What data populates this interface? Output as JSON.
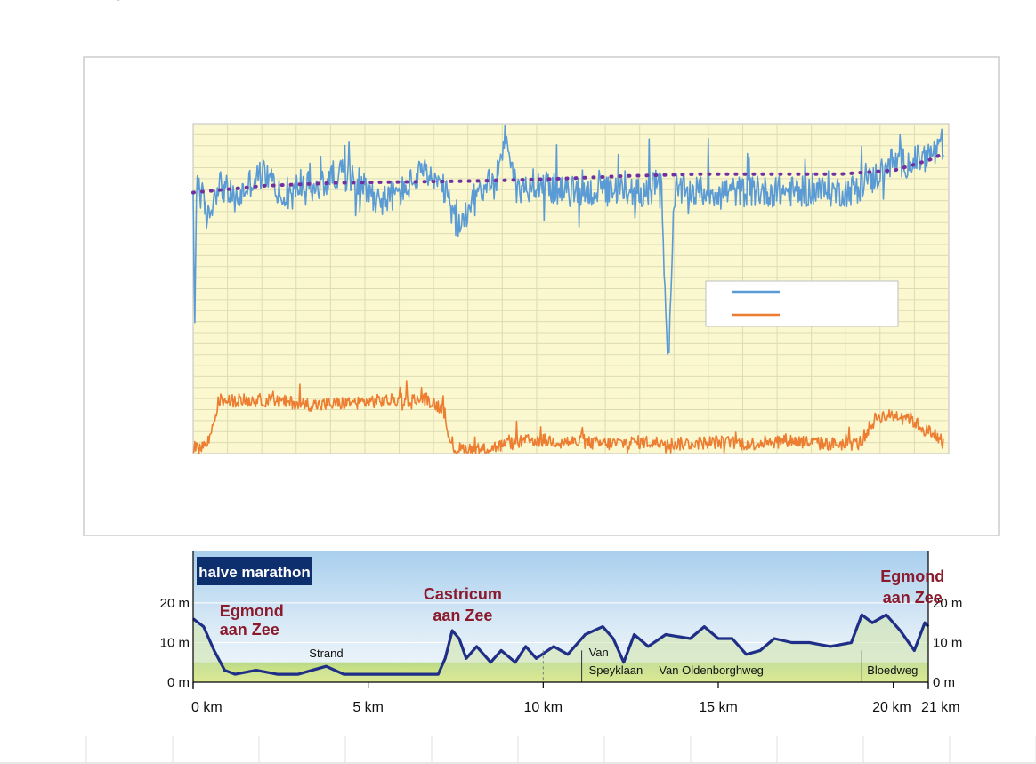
{
  "chart_data": [
    {
      "type": "line",
      "title": "",
      "xlabel": "",
      "ylabel": "",
      "grid": true,
      "legend_placement": "right",
      "plot_background": "#fbf8d0",
      "series": [
        {
          "color": "#5b9bd5",
          "style": "noisy",
          "x_range_km": [
            0,
            21
          ],
          "profile": [
            [
              0.0,
              27
            ],
            [
              0.05,
              12
            ],
            [
              0.1,
              29
            ],
            [
              0.4,
              24
            ],
            [
              0.7,
              28
            ],
            [
              1.2,
              26
            ],
            [
              1.6,
              28
            ],
            [
              2.0,
              29
            ],
            [
              2.6,
              26
            ],
            [
              3.0,
              28
            ],
            [
              3.4,
              27
            ],
            [
              4.0,
              29
            ],
            [
              4.6,
              28
            ],
            [
              5.2,
              26
            ],
            [
              5.8,
              27
            ],
            [
              6.4,
              29
            ],
            [
              7.0,
              27
            ],
            [
              7.4,
              23
            ],
            [
              7.8,
              27
            ],
            [
              8.4,
              28
            ],
            [
              8.7,
              33
            ],
            [
              9.0,
              27
            ],
            [
              9.6,
              28
            ],
            [
              10.2,
              27
            ],
            [
              10.8,
              27
            ],
            [
              11.4,
              27
            ],
            [
              12.0,
              27
            ],
            [
              12.6,
              27
            ],
            [
              13.0,
              28
            ],
            [
              13.2,
              9
            ],
            [
              13.4,
              27
            ],
            [
              14.0,
              27
            ],
            [
              14.6,
              27
            ],
            [
              15.2,
              27
            ],
            [
              15.8,
              27
            ],
            [
              16.4,
              27
            ],
            [
              17.0,
              27
            ],
            [
              17.6,
              27
            ],
            [
              18.2,
              27
            ],
            [
              18.8,
              28
            ],
            [
              19.4,
              30
            ],
            [
              20.0,
              30
            ],
            [
              20.6,
              31
            ],
            [
              21.0,
              31
            ]
          ],
          "amplitude": 3.2
        },
        {
          "color": "#7030a0",
          "style": "dotted-trend",
          "profile": [
            [
              0.0,
              26.9
            ],
            [
              2.0,
              27.6
            ],
            [
              4.0,
              27.9
            ],
            [
              6.0,
              28.0
            ],
            [
              8.0,
              28.1
            ],
            [
              10.0,
              28.3
            ],
            [
              12.0,
              28.6
            ],
            [
              14.0,
              28.8
            ],
            [
              16.0,
              28.8
            ],
            [
              18.0,
              28.8
            ],
            [
              19.5,
              29.2
            ],
            [
              20.5,
              30.3
            ],
            [
              21.0,
              31.2
            ]
          ]
        },
        {
          "color": "#ed7d31",
          "style": "noisy",
          "profile": [
            [
              0.0,
              0.5
            ],
            [
              0.4,
              1.0
            ],
            [
              0.6,
              3.5
            ],
            [
              0.7,
              5.5
            ],
            [
              2.0,
              5.5
            ],
            [
              3.5,
              5.0
            ],
            [
              5.0,
              5.4
            ],
            [
              6.5,
              5.6
            ],
            [
              7.0,
              4.5
            ],
            [
              7.15,
              0.5
            ],
            [
              8.0,
              0.4
            ],
            [
              8.8,
              1.0
            ],
            [
              9.5,
              1.4
            ],
            [
              10.5,
              1.2
            ],
            [
              11.5,
              1.0
            ],
            [
              12.5,
              1.2
            ],
            [
              13.5,
              1.0
            ],
            [
              14.5,
              1.2
            ],
            [
              15.5,
              1.0
            ],
            [
              16.5,
              1.4
            ],
            [
              17.5,
              1.0
            ],
            [
              18.5,
              1.0
            ],
            [
              19.0,
              3.8
            ],
            [
              19.8,
              4.0
            ],
            [
              20.3,
              2.5
            ],
            [
              20.6,
              2.0
            ],
            [
              21.0,
              0.5
            ]
          ],
          "amplitude": 1.4
        }
      ],
      "legend": [
        {
          "color": "#5b9bd5",
          "label": ""
        },
        {
          "color": "#ed7d31",
          "label": ""
        }
      ]
    },
    {
      "type": "area",
      "badge": "halve marathon",
      "x_tick_labels": [
        "0 km",
        "5 km",
        "10 km",
        "15 km",
        "20 km",
        "21 km"
      ],
      "x_ticks": [
        0,
        5,
        10,
        15,
        20,
        21
      ],
      "y_tick_labels": [
        "20 m",
        "10 m",
        "0 m"
      ],
      "y_ticks": [
        20,
        10,
        0
      ],
      "ylim": [
        0,
        33
      ],
      "xlim": [
        0,
        21
      ],
      "places": [
        {
          "lines": [
            "Egmond",
            "aan Zee"
          ],
          "km": 0.4
        },
        {
          "lines": [
            "Castricum",
            "aan Zee"
          ],
          "km": 7.5
        },
        {
          "lines": [
            "Egmond",
            "aan Zee"
          ],
          "km": 20.0
        }
      ],
      "streets": [
        {
          "lines": [
            "Strand"
          ],
          "km": 3.8
        },
        {
          "lines": [
            "Van",
            "Speyklaan"
          ],
          "km": 11.2
        },
        {
          "lines": [
            "Van Oldenborghweg"
          ],
          "km": 14.8
        },
        {
          "lines": [
            "Bloedweg"
          ],
          "km": 19.3
        }
      ],
      "street_dividers_km": [
        11.1,
        19.1
      ],
      "elevation": [
        [
          0.0,
          16
        ],
        [
          0.3,
          14
        ],
        [
          0.6,
          8
        ],
        [
          0.9,
          3
        ],
        [
          1.2,
          2
        ],
        [
          1.8,
          3
        ],
        [
          2.4,
          2
        ],
        [
          3.0,
          2
        ],
        [
          3.4,
          3
        ],
        [
          3.8,
          4
        ],
        [
          4.3,
          2
        ],
        [
          5.0,
          2
        ],
        [
          6.0,
          2
        ],
        [
          7.0,
          2
        ],
        [
          7.2,
          6
        ],
        [
          7.4,
          13
        ],
        [
          7.6,
          11
        ],
        [
          7.8,
          6
        ],
        [
          8.1,
          9
        ],
        [
          8.5,
          5
        ],
        [
          8.8,
          8
        ],
        [
          9.2,
          5
        ],
        [
          9.5,
          9
        ],
        [
          9.8,
          6
        ],
        [
          10.3,
          9
        ],
        [
          10.7,
          7
        ],
        [
          11.2,
          12
        ],
        [
          11.7,
          14
        ],
        [
          12.0,
          11
        ],
        [
          12.3,
          5
        ],
        [
          12.6,
          12
        ],
        [
          13.0,
          9
        ],
        [
          13.5,
          12
        ],
        [
          14.2,
          11
        ],
        [
          14.6,
          14
        ],
        [
          15.0,
          11
        ],
        [
          15.4,
          11
        ],
        [
          15.8,
          7
        ],
        [
          16.2,
          8
        ],
        [
          16.6,
          11
        ],
        [
          17.1,
          10
        ],
        [
          17.6,
          10
        ],
        [
          18.2,
          9
        ],
        [
          18.8,
          10
        ],
        [
          19.1,
          17
        ],
        [
          19.4,
          15
        ],
        [
          19.8,
          17
        ],
        [
          20.2,
          13
        ],
        [
          20.6,
          8
        ],
        [
          20.9,
          15
        ],
        [
          21.0,
          14
        ]
      ]
    }
  ]
}
